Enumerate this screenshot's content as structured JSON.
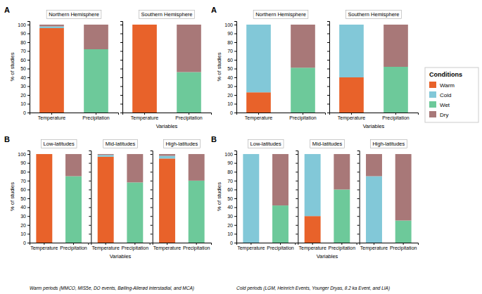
{
  "chart_data": [
    {
      "type": "bar",
      "stacked": true,
      "title": "Northern Hemisphere",
      "ylabel": "% of studies",
      "categories": [
        "Temperature",
        "Precipitation"
      ],
      "series": [
        {
          "name": "Warm",
          "color": "#E8622A",
          "values": [
            96,
            null
          ]
        },
        {
          "name": "Cold",
          "color": "#82C8D8",
          "values": [
            2,
            null
          ]
        },
        {
          "name": "Wet",
          "color": "#6DC99A",
          "values": [
            null,
            72
          ]
        },
        {
          "name": "Dry",
          "color": "#A87878",
          "values": [
            2,
            28
          ]
        }
      ],
      "ylim": [
        0,
        104
      ],
      "yticks": [
        0,
        10,
        20,
        30,
        40,
        50,
        60,
        70,
        80,
        90,
        100
      ],
      "annotations": [
        {
          "text": "A"
        }
      ],
      "legend": "right",
      "legend_title": "Conditions"
    },
    {
      "type": "bar",
      "stacked": true,
      "title": "Southern Hemisphere",
      "xlabel": "Variables",
      "categories": [
        "Temperature",
        "Precipitation"
      ],
      "series": [
        {
          "name": "Warm",
          "color": "#E8622A",
          "values": [
            100,
            null
          ]
        },
        {
          "name": "Cold",
          "color": "#82C8D8",
          "values": [
            null,
            null
          ]
        },
        {
          "name": "Wet",
          "color": "#6DC99A",
          "values": [
            null,
            46
          ]
        },
        {
          "name": "Dry",
          "color": "#A87878",
          "values": [
            null,
            54
          ]
        }
      ],
      "ylim": [
        0,
        104
      ],
      "yticks": [
        0,
        10,
        20,
        30,
        40,
        50,
        60,
        70,
        80,
        90,
        100
      ],
      "tick_labels": "x"
    },
    {
      "type": "bar",
      "stacked": true,
      "title": "Low-latitudes",
      "ylabel": "% of studies",
      "categories": [
        "Temperature",
        "Precipitation"
      ],
      "series": [
        {
          "name": "Warm",
          "color": "#E8622A",
          "values": [
            100,
            null
          ]
        },
        {
          "name": "Cold",
          "color": "#82C8D8",
          "values": [
            null,
            null
          ]
        },
        {
          "name": "Wet",
          "color": "#6DC99A",
          "values": [
            null,
            75
          ]
        },
        {
          "name": "Dry",
          "color": "#A87878",
          "values": [
            null,
            25
          ]
        }
      ],
      "ylim": [
        0,
        104
      ],
      "yticks": [
        0,
        10,
        20,
        30,
        40,
        50,
        60,
        70,
        80,
        90,
        100
      ],
      "annotations": [
        {
          "text": "B"
        },
        {
          "text": "Warm periods (MMCO, MIS5e, DO events, Bølling-Allerød interstadial, and MCA)"
        }
      ]
    },
    {
      "type": "bar",
      "stacked": true,
      "title": "Mid-latitudes",
      "xlabel": "Variables",
      "categories": [
        "Temperature",
        "Precipitation"
      ],
      "series": [
        {
          "name": "Warm",
          "color": "#E8622A",
          "values": [
            97,
            null
          ]
        },
        {
          "name": "Cold",
          "color": "#82C8D8",
          "values": [
            2,
            null
          ]
        },
        {
          "name": "Wet",
          "color": "#6DC99A",
          "values": [
            null,
            68
          ]
        },
        {
          "name": "Dry",
          "color": "#A87878",
          "values": [
            1,
            32
          ]
        }
      ],
      "ylim": [
        0,
        104
      ],
      "yticks": [
        0,
        10,
        20,
        30,
        40,
        50,
        60,
        70,
        80,
        90,
        100
      ],
      "tick_labels": "x"
    },
    {
      "type": "bar",
      "stacked": true,
      "title": "High-latitudes",
      "categories": [
        "Temperature",
        "Precipitation"
      ],
      "series": [
        {
          "name": "Warm",
          "color": "#E8622A",
          "values": [
            95,
            null
          ]
        },
        {
          "name": "Cold",
          "color": "#82C8D8",
          "values": [
            3,
            null
          ]
        },
        {
          "name": "Wet",
          "color": "#6DC99A",
          "values": [
            null,
            70
          ]
        },
        {
          "name": "Dry",
          "color": "#A87878",
          "values": [
            2,
            30
          ]
        }
      ],
      "ylim": [
        0,
        104
      ],
      "yticks": [
        0,
        10,
        20,
        30,
        40,
        50,
        60,
        70,
        80,
        90,
        100
      ],
      "tick_labels": "x"
    },
    {
      "type": "bar",
      "stacked": true,
      "title": "Northern Hemisphere",
      "ylabel": "% of studies",
      "categories": [
        "Temperature",
        "Precipitation"
      ],
      "series": [
        {
          "name": "Warm",
          "color": "#E8622A",
          "values": [
            23,
            null
          ]
        },
        {
          "name": "Cold",
          "color": "#82C8D8",
          "values": [
            77,
            null
          ]
        },
        {
          "name": "Wet",
          "color": "#6DC99A",
          "values": [
            null,
            51
          ]
        },
        {
          "name": "Dry",
          "color": "#A87878",
          "values": [
            null,
            49
          ]
        }
      ],
      "ylim": [
        0,
        104
      ],
      "yticks": [
        0,
        10,
        20,
        30,
        40,
        50,
        60,
        70,
        80,
        90,
        100
      ],
      "annotations": [
        {
          "text": "A"
        }
      ]
    },
    {
      "type": "bar",
      "stacked": true,
      "title": "Southern Hemisphere",
      "xlabel": "Variables",
      "categories": [
        "Temperature",
        "Precipitation"
      ],
      "series": [
        {
          "name": "Warm",
          "color": "#E8622A",
          "values": [
            40,
            null
          ]
        },
        {
          "name": "Cold",
          "color": "#82C8D8",
          "values": [
            60,
            null
          ]
        },
        {
          "name": "Wet",
          "color": "#6DC99A",
          "values": [
            null,
            52
          ]
        },
        {
          "name": "Dry",
          "color": "#A87878",
          "values": [
            null,
            48
          ]
        }
      ],
      "ylim": [
        0,
        104
      ],
      "yticks": [
        0,
        10,
        20,
        30,
        40,
        50,
        60,
        70,
        80,
        90,
        100
      ],
      "tick_labels": "x"
    },
    {
      "type": "bar",
      "stacked": true,
      "title": "Low-latitudes",
      "ylabel": "% of studies",
      "categories": [
        "Temperature",
        "Precipitation"
      ],
      "series": [
        {
          "name": "Warm",
          "color": "#E8622A",
          "values": [
            null,
            null
          ]
        },
        {
          "name": "Cold",
          "color": "#82C8D8",
          "values": [
            100,
            null
          ]
        },
        {
          "name": "Wet",
          "color": "#6DC99A",
          "values": [
            null,
            42
          ]
        },
        {
          "name": "Dry",
          "color": "#A87878",
          "values": [
            null,
            58
          ]
        }
      ],
      "ylim": [
        0,
        104
      ],
      "yticks": [
        0,
        10,
        20,
        30,
        40,
        50,
        60,
        70,
        80,
        90,
        100
      ],
      "annotations": [
        {
          "text": "B"
        },
        {
          "text": "Cold periods (LGM, Heinrich Events, Younger Dryas, 8.2 ka Event, and LIA)"
        }
      ]
    },
    {
      "type": "bar",
      "stacked": true,
      "title": "Mid-latitudes",
      "xlabel": "Variables",
      "categories": [
        "Temperature",
        "Precipitation"
      ],
      "series": [
        {
          "name": "Warm",
          "color": "#E8622A",
          "values": [
            30,
            null
          ]
        },
        {
          "name": "Cold",
          "color": "#82C8D8",
          "values": [
            70,
            null
          ]
        },
        {
          "name": "Wet",
          "color": "#6DC99A",
          "values": [
            null,
            60
          ]
        },
        {
          "name": "Dry",
          "color": "#A87878",
          "values": [
            null,
            40
          ]
        }
      ],
      "ylim": [
        0,
        104
      ],
      "yticks": [
        0,
        10,
        20,
        30,
        40,
        50,
        60,
        70,
        80,
        90,
        100
      ],
      "tick_labels": "x"
    },
    {
      "type": "bar",
      "stacked": true,
      "title": "High-latitudes",
      "categories": [
        "Temperature",
        "Precipitation"
      ],
      "series": [
        {
          "name": "Warm",
          "color": "#E8622A",
          "values": [
            null,
            null
          ]
        },
        {
          "name": "Cold",
          "color": "#82C8D8",
          "values": [
            75,
            null
          ]
        },
        {
          "name": "Wet",
          "color": "#6DC99A",
          "values": [
            null,
            25
          ]
        },
        {
          "name": "Dry",
          "color": "#A87878",
          "values": [
            25,
            75
          ]
        }
      ],
      "ylim": [
        0,
        104
      ],
      "yticks": [
        0,
        10,
        20,
        30,
        40,
        50,
        60,
        70,
        80,
        90,
        100
      ],
      "tick_labels": "x"
    }
  ]
}
